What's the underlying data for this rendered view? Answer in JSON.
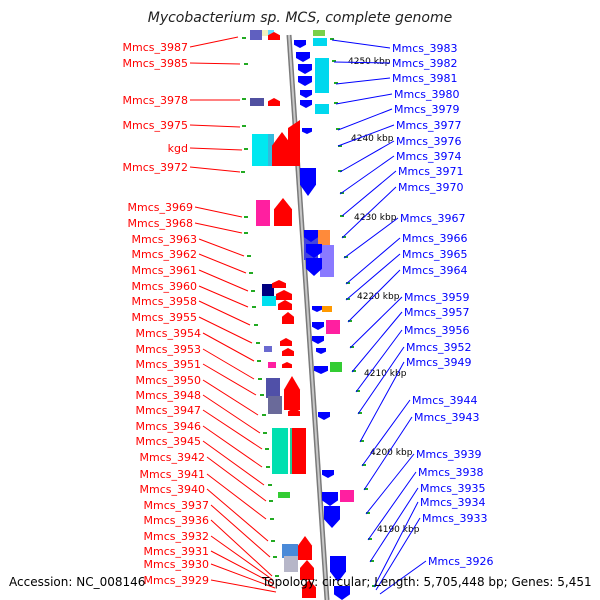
{
  "title": "Mycobacterium sp. MCS, complete genome",
  "footer": {
    "accession": "Accession: NC_008146",
    "topology": "Topology: circular; Length: 5,705,448 bp; Genes: 5,451"
  },
  "kbp_labels": [
    "4250 kbp",
    "4240 kbp",
    "4230 kbp",
    "4220 kbp",
    "4210 kbp",
    "4200 kbp",
    "4190 kbp"
  ],
  "left_genes": [
    "Mmcs_3987",
    "Mmcs_3985",
    "Mmcs_3978",
    "Mmcs_3975",
    "kgd",
    "Mmcs_3972",
    "Mmcs_3969",
    "Mmcs_3968",
    "Mmcs_3963",
    "Mmcs_3962",
    "Mmcs_3961",
    "Mmcs_3960",
    "Mmcs_3958",
    "Mmcs_3955",
    "Mmcs_3954",
    "Mmcs_3953",
    "Mmcs_3951",
    "Mmcs_3950",
    "Mmcs_3948",
    "Mmcs_3947",
    "Mmcs_3946",
    "Mmcs_3945",
    "Mmcs_3942",
    "Mmcs_3941",
    "Mmcs_3940",
    "Mmcs_3937",
    "Mmcs_3936",
    "Mmcs_3932",
    "Mmcs_3931",
    "Mmcs_3930",
    "Mmcs_3929"
  ],
  "right_genes": [
    "Mmcs_3983",
    "Mmcs_3982",
    "Mmcs_3981",
    "Mmcs_3980",
    "Mmcs_3979",
    "Mmcs_3977",
    "Mmcs_3976",
    "Mmcs_3974",
    "Mmcs_3971",
    "Mmcs_3970",
    "Mmcs_3967",
    "Mmcs_3966",
    "Mmcs_3965",
    "Mmcs_3964",
    "Mmcs_3959",
    "Mmcs_3957",
    "Mmcs_3956",
    "Mmcs_3952",
    "Mmcs_3949",
    "Mmcs_3944",
    "Mmcs_3943",
    "Mmcs_3939",
    "Mmcs_3938",
    "Mmcs_3935",
    "Mmcs_3934",
    "Mmcs_3933",
    "Mmcs_3926"
  ],
  "colors": {
    "left_strand": "#ff0000",
    "right_strand": "#0000ff",
    "backbone": "#9a9a9a",
    "tick": "#22aa22"
  }
}
